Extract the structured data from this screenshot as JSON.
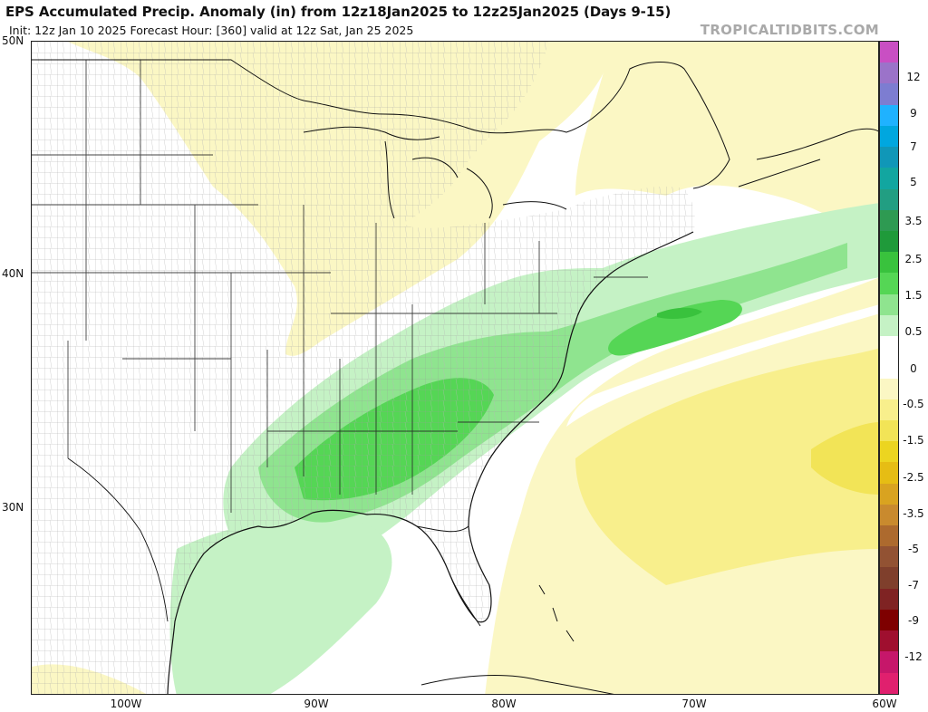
{
  "header": {
    "title": "EPS Accumulated Precip. Anomaly (in) from 12z18Jan2025 to 12z25Jan2025 (Days 9-15)",
    "subtitle": "Init: 12z Jan 10 2025   Forecast Hour: [360]   valid at 12z Sat, Jan 25 2025",
    "brand": "TROPICALTIDBITS.COM"
  },
  "axes": {
    "lat_labels": [
      "50N",
      "40N",
      "30N"
    ],
    "lon_labels": [
      "100W",
      "90W",
      "80W",
      "70W",
      "60W"
    ]
  },
  "colorbar": {
    "labels": [
      "12",
      "9",
      "7",
      "5",
      "3.5",
      "2.5",
      "1.5",
      "0.5",
      "0",
      "-0.5",
      "-1.5",
      "-2.5",
      "-3.5",
      "-5",
      "-7",
      "-9",
      "-12"
    ],
    "colors": [
      "#c94fc3",
      "#9b73c9",
      "#7d7dd1",
      "#1fb2ff",
      "#00a7df",
      "#1097b8",
      "#12a6a0",
      "#229e82",
      "#2e9a52",
      "#1f9a3a",
      "#39c23d",
      "#55d655",
      "#8fe48f",
      "#c5f2c5",
      "#ffffff",
      "#ffffff",
      "#fbf7c4",
      "#f8ef8c",
      "#f2e457",
      "#ecd520",
      "#e6bd14",
      "#d9a320",
      "#c98a2e",
      "#ad6a2e",
      "#925233",
      "#7f3f2c",
      "#7f2323",
      "#7e0000",
      "#9f0f2f",
      "#c6176a",
      "#e0206e"
    ]
  },
  "map_info": {
    "region": "Eastern United States and western Atlantic",
    "features": [
      "state borders",
      "county borders",
      "coastlines"
    ],
    "wet_anomaly_area": "Gulf Coast through Southeast US to off the Mid-Atlantic coast",
    "dry_anomaly_area": "Great Lakes, Canada, and western Atlantic south of 37N"
  }
}
